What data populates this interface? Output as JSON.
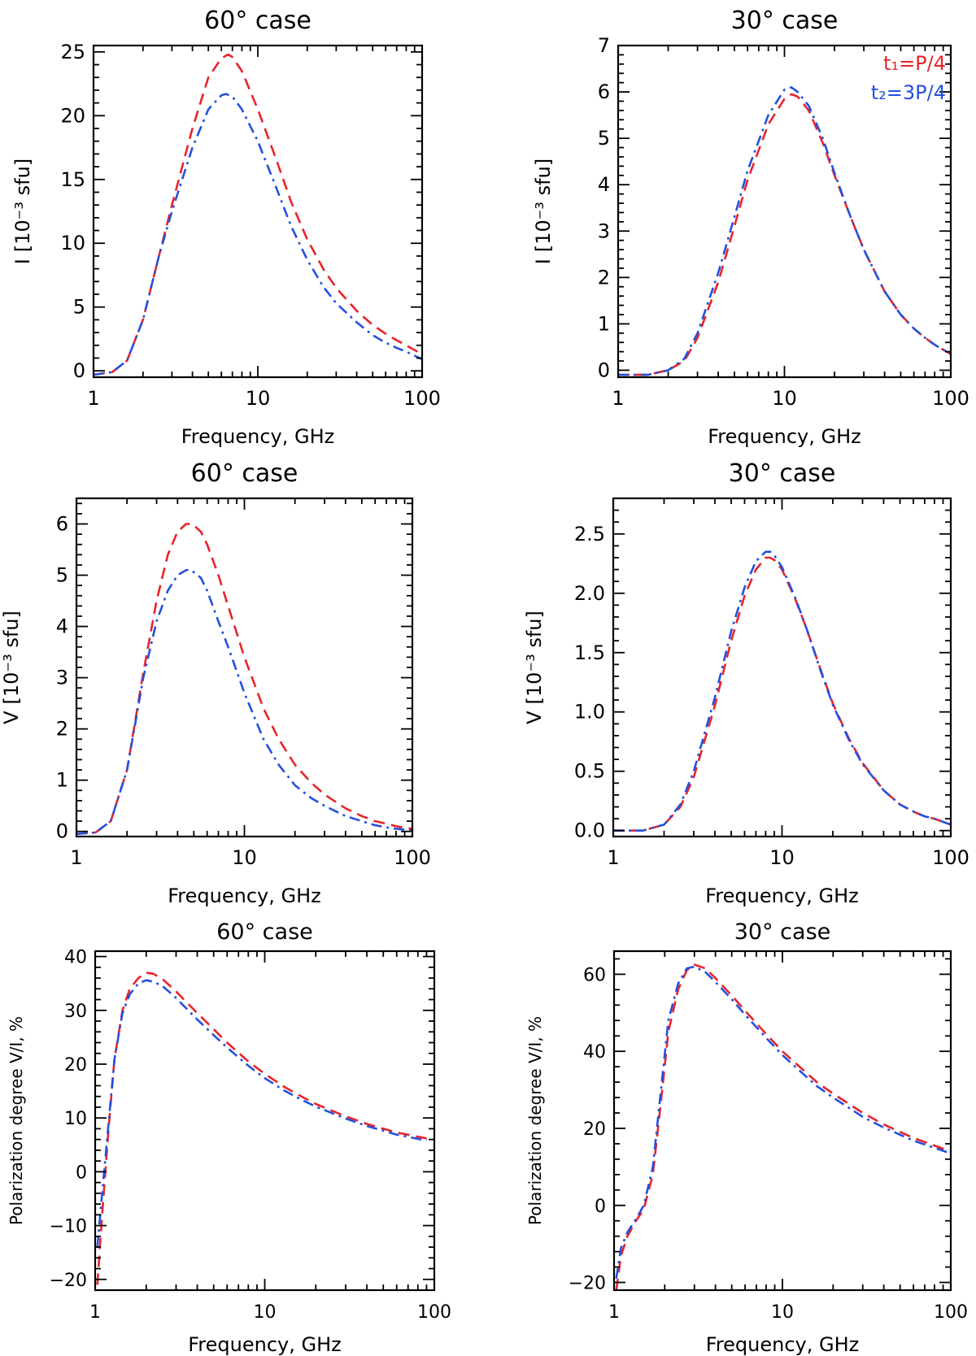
{
  "chart_data": [
    {
      "type": "line",
      "title": "60° case",
      "xlabel": "Frequency, GHz",
      "ylabel_main": "I",
      "ylabel_units": "[10⁻³ sfu]",
      "xscale": "log",
      "xlim": [
        1,
        100
      ],
      "ylim": [
        -0.5,
        25.5
      ],
      "xticks": [
        1,
        10,
        100
      ],
      "xtick_labels": [
        "1",
        "10",
        "100"
      ],
      "yticks": [
        0,
        5,
        10,
        15,
        20,
        25
      ],
      "ytick_labels": [
        "0",
        "5",
        "10",
        "15",
        "20",
        "25"
      ],
      "series": [
        {
          "name": "t1=P/4",
          "color": "#e8232a",
          "dash": "dashed",
          "x": [
            1,
            1.3,
            1.6,
            2,
            2.5,
            3,
            4,
            5,
            6,
            6.6,
            7,
            8,
            10,
            13,
            16,
            20,
            25,
            30,
            40,
            50,
            60,
            70,
            80,
            100
          ],
          "y": [
            -0.3,
            -0.1,
            0.8,
            4,
            9,
            13,
            19,
            23,
            24.5,
            24.8,
            24.6,
            23.5,
            20.5,
            16.5,
            13.2,
            10.3,
            8,
            6.5,
            4.7,
            3.6,
            2.9,
            2.4,
            2.0,
            1.3
          ]
        },
        {
          "name": "t2=3P/4",
          "color": "#2450e0",
          "dash": "dashdot",
          "x": [
            1,
            1.3,
            1.6,
            2,
            2.5,
            3,
            4,
            5,
            6,
            6.4,
            7,
            8,
            10,
            13,
            16,
            20,
            25,
            30,
            40,
            50,
            60,
            70,
            80,
            100
          ],
          "y": [
            -0.3,
            -0.1,
            0.8,
            4,
            9,
            12.5,
            17.5,
            20.5,
            21.6,
            21.7,
            21.5,
            20.5,
            18,
            14.3,
            11.3,
            8.7,
            6.6,
            5.3,
            3.8,
            2.8,
            2.2,
            1.8,
            1.5,
            0.9
          ]
        }
      ]
    },
    {
      "type": "line",
      "title": "30° case",
      "xlabel": "Frequency, GHz",
      "ylabel_main": "I",
      "ylabel_units": "[10⁻³ sfu]",
      "xscale": "log",
      "xlim": [
        1,
        100
      ],
      "ylim": [
        -0.15,
        7
      ],
      "xticks": [
        1,
        10,
        100
      ],
      "xtick_labels": [
        "1",
        "10",
        "100"
      ],
      "yticks": [
        0,
        1,
        2,
        3,
        4,
        5,
        6,
        7
      ],
      "ytick_labels": [
        "0",
        "1",
        "2",
        "3",
        "4",
        "5",
        "6",
        "7"
      ],
      "legend": [
        {
          "text": "t₁=P/4",
          "color": "#e8232a"
        },
        {
          "text": "t₂=3P/4",
          "color": "#2450e0"
        }
      ],
      "series": [
        {
          "name": "t1=P/4",
          "color": "#e8232a",
          "dash": "dashed",
          "x": [
            1,
            1.5,
            2,
            2.5,
            3,
            4,
            5,
            6,
            8,
            10,
            11,
            12,
            14,
            17,
            20,
            25,
            30,
            40,
            50,
            60,
            70,
            80,
            100
          ],
          "y": [
            -0.1,
            -0.1,
            0,
            0.2,
            0.7,
            1.9,
            3.1,
            4.1,
            5.3,
            5.85,
            5.95,
            5.9,
            5.6,
            4.9,
            4.2,
            3.3,
            2.6,
            1.7,
            1.2,
            0.9,
            0.7,
            0.55,
            0.35
          ]
        },
        {
          "name": "t2=3P/4",
          "color": "#2450e0",
          "dash": "dashdot",
          "x": [
            1,
            1.5,
            2,
            2.5,
            3,
            4,
            5,
            6,
            8,
            10,
            11,
            12,
            14,
            17,
            20,
            25,
            30,
            40,
            50,
            60,
            70,
            80,
            100
          ],
          "y": [
            -0.1,
            -0.1,
            0,
            0.25,
            0.8,
            2.1,
            3.3,
            4.3,
            5.5,
            6.05,
            6.1,
            6.0,
            5.7,
            5.0,
            4.25,
            3.3,
            2.6,
            1.7,
            1.2,
            0.9,
            0.7,
            0.55,
            0.35
          ]
        }
      ]
    },
    {
      "type": "line",
      "title": "60° case",
      "xlabel": "Frequency, GHz",
      "ylabel_main": "V",
      "ylabel_units": "[10⁻³ sfu]",
      "xscale": "log",
      "xlim": [
        1,
        100
      ],
      "ylim": [
        -0.1,
        6.5
      ],
      "xticks": [
        1,
        10,
        100
      ],
      "xtick_labels": [
        "1",
        "10",
        "100"
      ],
      "yticks": [
        0,
        1,
        2,
        3,
        4,
        5,
        6
      ],
      "ytick_labels": [
        "0",
        "1",
        "2",
        "3",
        "4",
        "5",
        "6"
      ],
      "series": [
        {
          "name": "t1=P/4",
          "color": "#e8232a",
          "dash": "dashed",
          "x": [
            1,
            1.3,
            1.6,
            2,
            2.5,
            3,
            3.5,
            4,
            4.5,
            4.9,
            5.5,
            6,
            7,
            8,
            10,
            13,
            16,
            20,
            25,
            30,
            40,
            50,
            60,
            70,
            80,
            100
          ],
          "y": [
            -0.05,
            -0.02,
            0.2,
            1.2,
            3.1,
            4.5,
            5.4,
            5.85,
            6.0,
            6.0,
            5.85,
            5.6,
            5.0,
            4.4,
            3.4,
            2.4,
            1.8,
            1.3,
            0.95,
            0.72,
            0.45,
            0.3,
            0.2,
            0.15,
            0.1,
            0.05
          ]
        },
        {
          "name": "t2=3P/4",
          "color": "#2450e0",
          "dash": "dashdot",
          "x": [
            1,
            1.3,
            1.6,
            2,
            2.5,
            3,
            3.5,
            4,
            4.5,
            4.8,
            5.5,
            6,
            7,
            8,
            10,
            13,
            16,
            20,
            25,
            30,
            40,
            50,
            60,
            70,
            80,
            100
          ],
          "y": [
            -0.05,
            -0.02,
            0.2,
            1.2,
            3.0,
            4.1,
            4.7,
            5.0,
            5.1,
            5.1,
            4.95,
            4.7,
            4.1,
            3.6,
            2.7,
            1.8,
            1.3,
            0.9,
            0.65,
            0.5,
            0.3,
            0.2,
            0.12,
            0.08,
            0.05,
            0.02
          ]
        }
      ]
    },
    {
      "type": "line",
      "title": "30° case",
      "xlabel": "Frequency, GHz",
      "ylabel_main": "V",
      "ylabel_units": "[10⁻³ sfu]",
      "xscale": "log",
      "xlim": [
        1,
        100
      ],
      "ylim": [
        -0.05,
        2.8
      ],
      "xticks": [
        1,
        10,
        100
      ],
      "xtick_labels": [
        "1",
        "10",
        "100"
      ],
      "yticks": [
        0,
        0.5,
        1,
        1.5,
        2,
        2.5
      ],
      "ytick_labels": [
        "0.0",
        "0.5",
        "1.0",
        "1.5",
        "2.0",
        "2.5"
      ],
      "series": [
        {
          "name": "t1=P/4",
          "color": "#e8232a",
          "dash": "dashed",
          "x": [
            1,
            1.5,
            2,
            2.5,
            3,
            4,
            5,
            6,
            7,
            8,
            8.5,
            9,
            10,
            12,
            14,
            17,
            20,
            25,
            30,
            40,
            50,
            60,
            70,
            80,
            100
          ],
          "y": [
            0,
            0,
            0.05,
            0.2,
            0.45,
            1.05,
            1.6,
            1.98,
            2.2,
            2.3,
            2.3,
            2.28,
            2.2,
            1.95,
            1.7,
            1.35,
            1.07,
            0.77,
            0.57,
            0.34,
            0.22,
            0.16,
            0.12,
            0.1,
            0.05
          ]
        },
        {
          "name": "t2=3P/4",
          "color": "#2450e0",
          "dash": "dashdot",
          "x": [
            1,
            1.5,
            2,
            2.5,
            3,
            4,
            5,
            6,
            7,
            8,
            8.5,
            9,
            10,
            12,
            14,
            17,
            20,
            25,
            30,
            40,
            50,
            60,
            70,
            80,
            100
          ],
          "y": [
            0,
            0,
            0.05,
            0.22,
            0.5,
            1.12,
            1.68,
            2.05,
            2.27,
            2.35,
            2.35,
            2.32,
            2.22,
            1.96,
            1.7,
            1.34,
            1.06,
            0.76,
            0.56,
            0.34,
            0.22,
            0.16,
            0.12,
            0.1,
            0.05
          ]
        }
      ]
    },
    {
      "type": "line",
      "title": "60° case",
      "xlabel": "Frequency, GHz",
      "ylabel_main": "Polarization degree V/I, %",
      "ylabel_units": "",
      "xscale": "log",
      "xlim": [
        1,
        100
      ],
      "ylim": [
        -22,
        41
      ],
      "xticks": [
        1,
        10,
        100
      ],
      "xtick_labels": [
        "1",
        "10",
        "100"
      ],
      "yticks": [
        -20,
        -10,
        0,
        10,
        20,
        30,
        40
      ],
      "ytick_labels": [
        "−20",
        "−10",
        "0",
        "10",
        "20",
        "30",
        "40"
      ],
      "series": [
        {
          "name": "t1=P/4",
          "color": "#e8232a",
          "dash": "dashed",
          "x": [
            1.03,
            1.1,
            1.2,
            1.3,
            1.45,
            1.6,
            1.8,
            2.0,
            2.2,
            2.5,
            3,
            4,
            5,
            6,
            8,
            10,
            13,
            16,
            20,
            30,
            40,
            60,
            90
          ],
          "y": [
            -21,
            -8,
            8,
            21,
            30,
            34,
            36,
            37,
            36.8,
            35.8,
            33.5,
            29.5,
            26.5,
            24,
            20.5,
            18.2,
            15.8,
            14.2,
            12.6,
            10.3,
            8.9,
            7.3,
            6.2
          ]
        },
        {
          "name": "t2=3P/4",
          "color": "#2450e0",
          "dash": "dashdot",
          "x": [
            1.03,
            1.1,
            1.2,
            1.3,
            1.45,
            1.6,
            1.8,
            2.0,
            2.2,
            2.5,
            3,
            4,
            5,
            6,
            8,
            10,
            13,
            16,
            20,
            30,
            40,
            60,
            90
          ],
          "y": [
            -14,
            -4,
            9,
            21,
            29.5,
            33,
            35,
            35.6,
            35.3,
            34.5,
            32.3,
            28.3,
            25.4,
            23.1,
            19.7,
            17.4,
            15.1,
            13.6,
            12.1,
            9.9,
            8.5,
            6.9,
            5.8
          ]
        }
      ]
    },
    {
      "type": "line",
      "title": "30° case",
      "xlabel": "Frequency, GHz",
      "ylabel_main": "Polarization degree V/I, %",
      "ylabel_units": "",
      "xscale": "log",
      "xlim": [
        1,
        100
      ],
      "ylim": [
        -22,
        66
      ],
      "xticks": [
        1,
        10,
        100
      ],
      "xtick_labels": [
        "1",
        "10",
        "100"
      ],
      "yticks": [
        -20,
        0,
        20,
        40,
        60
      ],
      "ytick_labels": [
        "−20",
        "0",
        "20",
        "40",
        "60"
      ],
      "series": [
        {
          "name": "t1=P/4",
          "color": "#e8232a",
          "dash": "dashed",
          "x": [
            1.03,
            1.1,
            1.2,
            1.35,
            1.5,
            1.7,
            1.9,
            2.1,
            2.4,
            2.7,
            3,
            3.5,
            4,
            5,
            6,
            8,
            10,
            13,
            16,
            20,
            30,
            40,
            60,
            100
          ],
          "y": [
            -22,
            -13,
            -8,
            -4,
            -1,
            8,
            27,
            45,
            56,
            61,
            62.5,
            61.5,
            59,
            54.5,
            50.5,
            44.5,
            40,
            35.5,
            32,
            29,
            24,
            21,
            17.5,
            14
          ]
        },
        {
          "name": "t2=3P/4",
          "color": "#2450e0",
          "dash": "dashdot",
          "x": [
            1.03,
            1.1,
            1.2,
            1.35,
            1.5,
            1.7,
            1.9,
            2.1,
            2.4,
            2.7,
            3,
            3.5,
            4,
            5,
            6,
            8,
            10,
            13,
            16,
            20,
            30,
            40,
            60,
            100
          ],
          "y": [
            -19,
            -11,
            -7,
            -3.5,
            0,
            10,
            30,
            48,
            57.5,
            61.5,
            62,
            60.5,
            58,
            53.5,
            49.5,
            43.5,
            39,
            34.5,
            31,
            28,
            23,
            20.2,
            16.8,
            13.5
          ]
        }
      ]
    }
  ]
}
